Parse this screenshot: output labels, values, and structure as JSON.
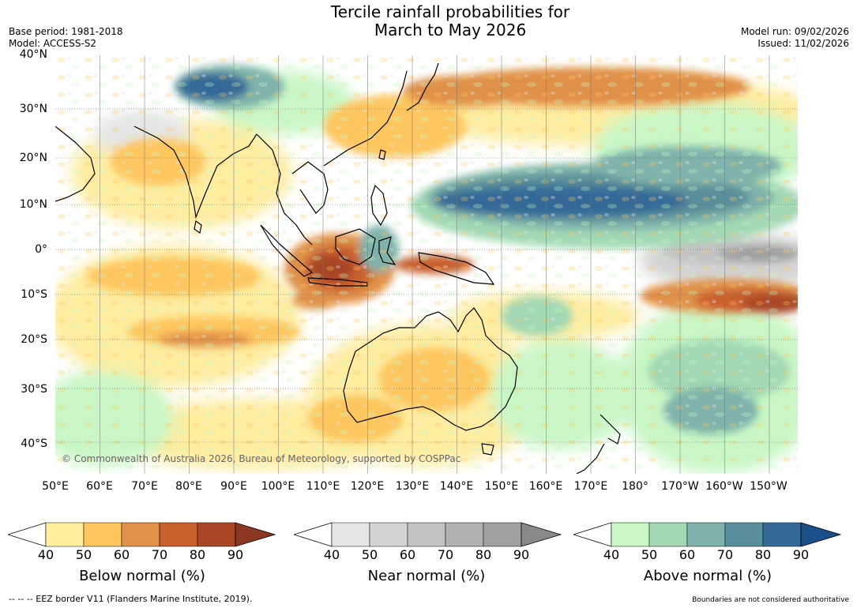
{
  "header": {
    "title_line1": "Tercile rainfall probabilities for",
    "title_line2": "March to May 2026",
    "base_period": "Base period: 1981-2018",
    "model": "Model: ACCESS-S2",
    "model_run": "Model run: 09/02/2026",
    "issued": "Issued: 11/02/2026"
  },
  "map": {
    "lat_labels": [
      "40°N",
      "30°N",
      "20°N",
      "10°N",
      "0°",
      "10°S",
      "20°S",
      "30°S",
      "40°S"
    ],
    "lon_labels": [
      "50°E",
      "60°E",
      "70°E",
      "80°E",
      "90°E",
      "100°E",
      "110°E",
      "120°E",
      "130°E",
      "140°E",
      "150°E",
      "160°E",
      "170°E",
      "180°",
      "170°W",
      "160°W",
      "150°W"
    ],
    "copyright": "© Commonwealth of Australia 2026, Bureau of Meteorology, supported by COSPPac"
  },
  "colorbars": [
    {
      "title": "Below normal (%)",
      "ticks": [
        "40",
        "50",
        "60",
        "70",
        "80",
        "90"
      ],
      "colors": [
        "#ffeda0",
        "#fec65e",
        "#e0914a",
        "#c9612f",
        "#a84725"
      ],
      "over": "#8b3620"
    },
    {
      "title": "Near normal (%)",
      "ticks": [
        "40",
        "50",
        "60",
        "70",
        "80",
        "90"
      ],
      "colors": [
        "#e5e5e5",
        "#d3d3d3",
        "#c2c2c2",
        "#b1b1b1",
        "#a0a0a0"
      ],
      "over": "#888888"
    },
    {
      "title": "Above normal (%)",
      "ticks": [
        "40",
        "50",
        "60",
        "70",
        "80",
        "90"
      ],
      "colors": [
        "#c8f7c5",
        "#a2d8b4",
        "#7fb3ab",
        "#588f9a",
        "#356a98"
      ],
      "over": "#1a4f8a"
    }
  ],
  "footer": {
    "eez_note": "--  --  -- EEZ border V11 (Flanders Marine Institute, 2019).",
    "boundaries_note": "Boundaries are not considered authoritative"
  }
}
